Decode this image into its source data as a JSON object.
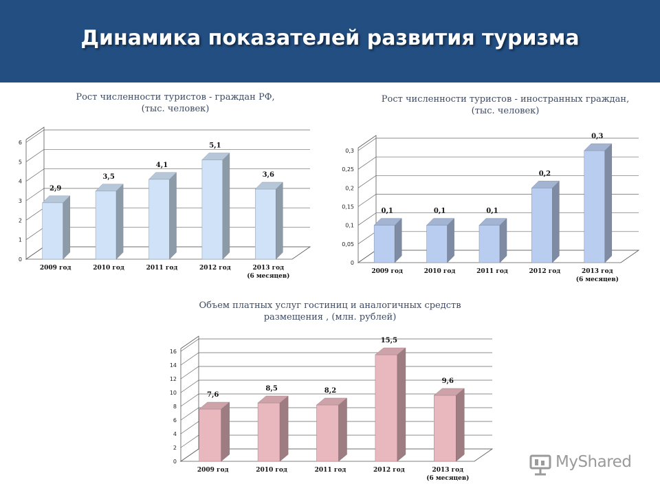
{
  "slide": {
    "title": "Динамика показателей развития туризма",
    "colors": {
      "header_bg": "#224e82",
      "title_text": "#ffffff"
    }
  },
  "watermark": {
    "text": "MyShared"
  },
  "chart_data": [
    {
      "type": "bar",
      "title": "Рост численности туристов - граждан РФ, (тыс. человек)",
      "title_lines": [
        "Рост численности туристов - граждан РФ,",
        "(тыс. человек)"
      ],
      "categories": [
        [
          "2009 год"
        ],
        [
          "2010 год"
        ],
        [
          "2011 год"
        ],
        [
          "2012 год"
        ],
        [
          "2013 год",
          "(6 месяцев)"
        ]
      ],
      "values": [
        2.9,
        3.5,
        4.1,
        5.1,
        3.6
      ],
      "value_labels": [
        "2,9",
        "3,5",
        "4,1",
        "5,1",
        "3,6"
      ],
      "yticks": [
        "0",
        "1",
        "2",
        "3",
        "4",
        "5",
        "6"
      ],
      "ylim": [
        0,
        6
      ],
      "grid": true,
      "bar_color": "#cfe2f7"
    },
    {
      "type": "bar",
      "title": "Рост численности туристов - иностранных граждан, (тыс. человек)",
      "title_lines": [
        "Рост численности туристов - иностранных граждан,",
        "(тыс. человек)"
      ],
      "categories": [
        [
          "2009 год"
        ],
        [
          "2010 год"
        ],
        [
          "2011 год"
        ],
        [
          "2012 год"
        ],
        [
          "2013 год",
          "(6 месяцев)"
        ]
      ],
      "values": [
        0.1,
        0.1,
        0.1,
        0.2,
        0.3
      ],
      "value_labels": [
        "0,1",
        "0,1",
        "0,1",
        "0,2",
        "0,3"
      ],
      "yticks": [
        "0",
        "0,05",
        "0,1",
        "0,15",
        "0,2",
        "0,25",
        "0,3"
      ],
      "ylim": [
        0,
        0.3
      ],
      "grid": true,
      "bar_color": "#b9cdf0"
    },
    {
      "type": "bar",
      "title": "Объем платных услуг гостиниц и аналогичных средств размещения , (млн. рублей)",
      "title_lines": [
        "Объем платных услуг гостиниц и аналогичных средств",
        "размещения , (млн. рублей)"
      ],
      "categories": [
        [
          "2009 год"
        ],
        [
          "2010 год"
        ],
        [
          "2011 год"
        ],
        [
          "2012 год"
        ],
        [
          "2013 год",
          "(6 месяцев)"
        ]
      ],
      "values": [
        7.6,
        8.5,
        8.2,
        15.5,
        9.6
      ],
      "value_labels": [
        "7,6",
        "8,5",
        "8,2",
        "15,5",
        "9,6"
      ],
      "yticks": [
        "0",
        "2",
        "4",
        "6",
        "8",
        "10",
        "12",
        "14",
        "16"
      ],
      "ylim": [
        0,
        16
      ],
      "grid": true,
      "bar_color": "#e9b8bf"
    }
  ]
}
